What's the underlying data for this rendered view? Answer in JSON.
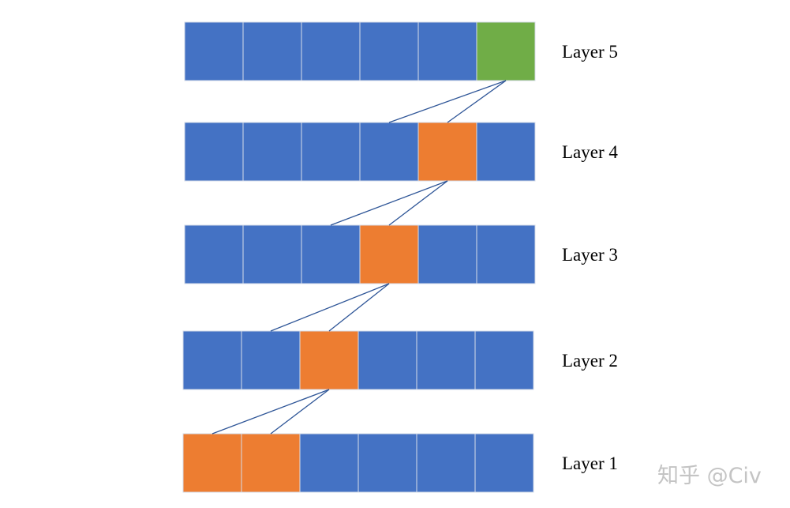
{
  "colors": {
    "default": "#4472c4",
    "highlight": "#ed7d31",
    "target": "#70ad47",
    "cell_border": "#d6dce8",
    "connector": "#2e5597"
  },
  "layers": [
    {
      "label": "Layer 5",
      "cells": [
        "default",
        "default",
        "default",
        "default",
        "default",
        "target"
      ]
    },
    {
      "label": "Layer 4",
      "cells": [
        "default",
        "default",
        "default",
        "default",
        "highlight",
        "default"
      ]
    },
    {
      "label": "Layer 3",
      "cells": [
        "default",
        "default",
        "default",
        "highlight",
        "default",
        "default"
      ]
    },
    {
      "label": "Layer 2",
      "cells": [
        "default",
        "default",
        "highlight",
        "default",
        "default",
        "default"
      ]
    },
    {
      "label": "Layer 1",
      "cells": [
        "highlight",
        "highlight",
        "default",
        "default",
        "default",
        "default"
      ]
    }
  ],
  "connections": [
    {
      "from_layer": 0,
      "from_cell": 5,
      "to_layer": 1,
      "to_cells": [
        3,
        4
      ]
    },
    {
      "from_layer": 1,
      "from_cell": 4,
      "to_layer": 2,
      "to_cells": [
        2,
        3
      ]
    },
    {
      "from_layer": 2,
      "from_cell": 3,
      "to_layer": 3,
      "to_cells": [
        1,
        2
      ]
    },
    {
      "from_layer": 3,
      "from_cell": 2,
      "to_layer": 4,
      "to_cells": [
        0,
        1
      ]
    }
  ],
  "watermark": "知乎 @Civ"
}
